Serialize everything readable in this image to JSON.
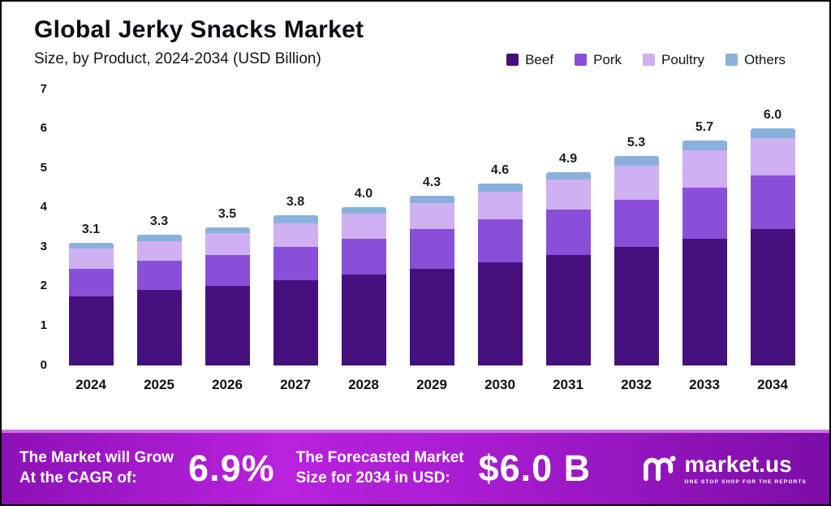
{
  "header": {
    "title": "Global Jerky Snacks Market",
    "subtitle": "Size, by Product, 2024-2034 (USD Billion)"
  },
  "legend": [
    {
      "label": "Beef",
      "color": "#44117e"
    },
    {
      "label": "Pork",
      "color": "#8a4fd8"
    },
    {
      "label": "Poultry",
      "color": "#cfb0f0"
    },
    {
      "label": "Others",
      "color": "#8ab1de"
    }
  ],
  "chart_data": {
    "type": "bar",
    "stacked": true,
    "title": "Global Jerky Snacks Market",
    "subtitle": "Size, by Product, 2024-2034 (USD Billion)",
    "xlabel": "",
    "ylabel": "",
    "ylim": [
      0,
      7
    ],
    "yticks": [
      0,
      1,
      2,
      3,
      4,
      5,
      6,
      7
    ],
    "grid": false,
    "legend_position": "top-right",
    "categories": [
      "2024",
      "2025",
      "2026",
      "2027",
      "2028",
      "2029",
      "2030",
      "2031",
      "2032",
      "2033",
      "2034"
    ],
    "series": [
      {
        "name": "Beef",
        "color": "#44117e",
        "values": [
          1.75,
          1.9,
          2.0,
          2.15,
          2.3,
          2.45,
          2.6,
          2.8,
          3.0,
          3.2,
          3.45
        ]
      },
      {
        "name": "Pork",
        "color": "#8a4fd8",
        "values": [
          0.7,
          0.75,
          0.8,
          0.85,
          0.9,
          1.0,
          1.1,
          1.15,
          1.2,
          1.3,
          1.35
        ]
      },
      {
        "name": "Poultry",
        "color": "#cfb0f0",
        "values": [
          0.5,
          0.5,
          0.55,
          0.6,
          0.65,
          0.65,
          0.7,
          0.75,
          0.85,
          0.95,
          0.95
        ]
      },
      {
        "name": "Others",
        "color": "#8ab1de",
        "values": [
          0.15,
          0.15,
          0.15,
          0.2,
          0.15,
          0.2,
          0.2,
          0.2,
          0.25,
          0.25,
          0.25
        ]
      }
    ],
    "totals": [
      3.1,
      3.3,
      3.5,
      3.8,
      4.0,
      4.3,
      4.6,
      4.9,
      5.3,
      5.7,
      6.0
    ],
    "total_labels": [
      "3.1",
      "3.3",
      "3.5",
      "3.8",
      "4.0",
      "4.3",
      "4.6",
      "4.9",
      "5.3",
      "5.7",
      "6.0"
    ]
  },
  "banner": {
    "cagr_line1": "The Market will Grow",
    "cagr_line2": "At the CAGR of:",
    "cagr_value": "6.9%",
    "forecast_line1": "The Forecasted Market",
    "forecast_line2": "Size for 2034 in USD:",
    "forecast_value": "$6.0 B",
    "logo_text": "market.us",
    "logo_tagline": "ONE STOP SHOP FOR THE REPORTS"
  }
}
